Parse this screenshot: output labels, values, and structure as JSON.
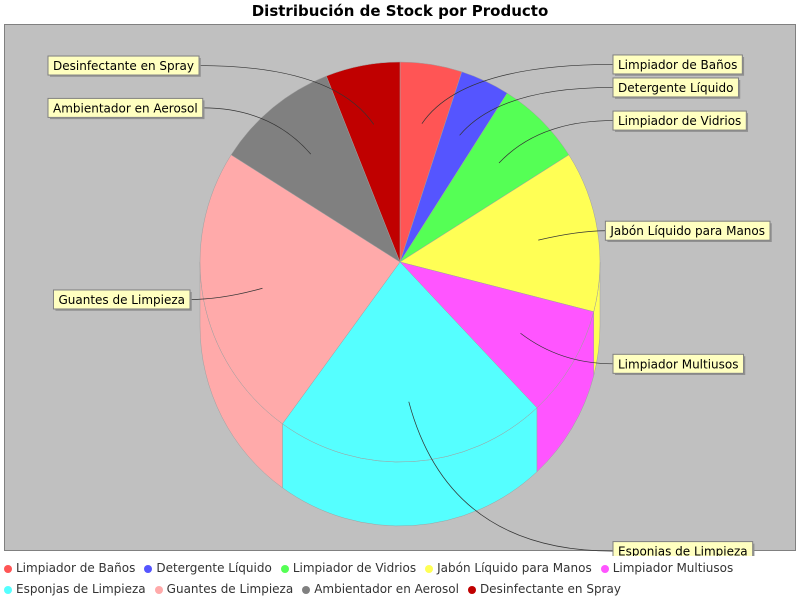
{
  "title": "Distribución de Stock por Producto",
  "chart_data": {
    "type": "pie",
    "title": "Distribución de Stock por Producto",
    "style": "3d",
    "legend_position": "bottom",
    "background_color": "#c0c0c0",
    "slices": [
      {
        "label": "Limpiador de Baños",
        "value": 5,
        "color": "#ff5555"
      },
      {
        "label": "Detergente Líquido",
        "value": 4,
        "color": "#5555ff"
      },
      {
        "label": "Limpiador de Vidrios",
        "value": 7,
        "color": "#55ff55"
      },
      {
        "label": "Jabón Líquido para Manos",
        "value": 13,
        "color": "#ffff55"
      },
      {
        "label": "Limpiador Multiusos",
        "value": 9,
        "color": "#ff55ff"
      },
      {
        "label": "Esponjas de Limpieza",
        "value": 22,
        "color": "#55ffff"
      },
      {
        "label": "Guantes de Limpieza",
        "value": 24,
        "color": "#ffaaaa"
      },
      {
        "label": "Ambientador en Aerosol",
        "value": 10,
        "color": "#808080"
      },
      {
        "label": "Desinfectante en Spray",
        "value": 6,
        "color": "#c00000"
      }
    ]
  }
}
